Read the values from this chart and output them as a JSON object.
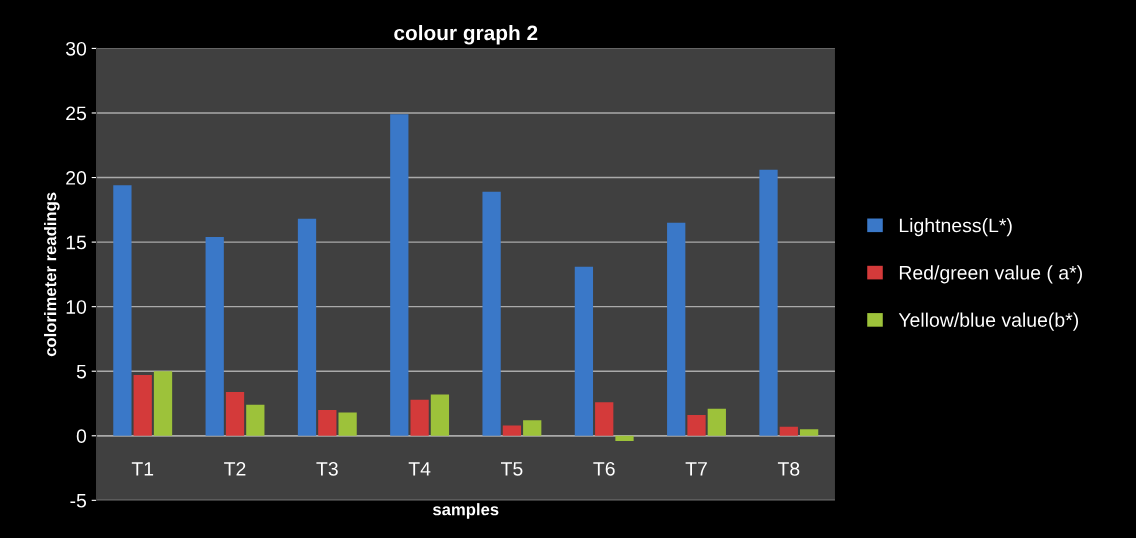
{
  "chart_data": {
    "type": "bar",
    "title": "colour graph 2",
    "xlabel": "samples",
    "ylabel": "colorimeter readings",
    "categories": [
      "T1",
      "T2",
      "T3",
      "T4",
      "T5",
      "T6",
      "T7",
      "T8"
    ],
    "series": [
      {
        "name": "Lightness(L*)",
        "color": "#3a78c8",
        "values": [
          19.4,
          15.4,
          16.8,
          24.9,
          18.9,
          13.1,
          16.5,
          20.6
        ]
      },
      {
        "name": "Red/green value ( a*)",
        "color": "#d43a3a",
        "values": [
          4.7,
          3.4,
          2.0,
          2.8,
          0.8,
          2.6,
          1.6,
          0.7
        ]
      },
      {
        "name": "Yellow/blue value(b*)",
        "color": "#9dc23a",
        "values": [
          5.0,
          2.4,
          1.8,
          3.2,
          1.2,
          -0.4,
          2.1,
          0.5
        ]
      }
    ],
    "ylim": [
      -5,
      30
    ],
    "yticks": [
      -5,
      0,
      5,
      10,
      15,
      20,
      25,
      30
    ],
    "grid": "y",
    "legend": "right"
  }
}
